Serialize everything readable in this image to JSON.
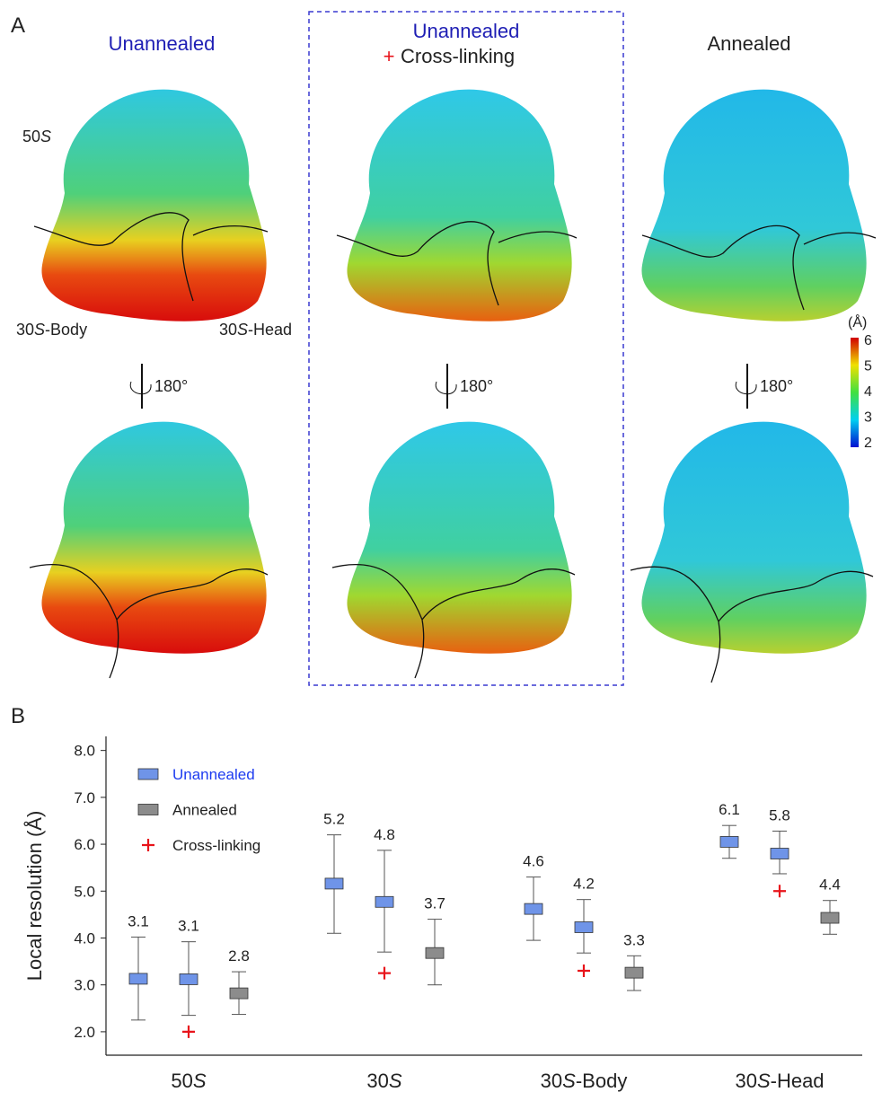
{
  "panel_a": {
    "label": "A",
    "titles": [
      {
        "text": "Unannealed"
      },
      {
        "text": "Unannealed",
        "marker": "+",
        "subtext": "Cross-linking"
      },
      {
        "text": "Annealed"
      }
    ],
    "regions": [
      "50S",
      "30S-Body",
      "30S-Head"
    ],
    "rotation": [
      "180°",
      "180°",
      "180°"
    ],
    "colorbar": {
      "unit": "(Å)",
      "ticks": [
        6,
        5,
        4,
        3,
        2
      ]
    }
  },
  "chart_data": {
    "type": "box",
    "panel_label": "B",
    "ylabel": "Local resolution (Å)",
    "categories": [
      "50S",
      "30S",
      "30S-Body",
      "30S-Head"
    ],
    "ylim": [
      1.5,
      8.3
    ],
    "yticks": [
      {
        "value": 2,
        "label": "2.0"
      },
      {
        "value": 3,
        "label": "3.0"
      },
      {
        "value": 4,
        "label": "4.0"
      },
      {
        "value": 5,
        "label": "5.0"
      },
      {
        "value": 6,
        "label": "6.0"
      },
      {
        "value": 7,
        "label": "7.0"
      },
      {
        "value": 8,
        "label": "8.0"
      }
    ],
    "series": [
      {
        "name": "Unannealed",
        "color": "#6f94e8",
        "values": [
          3.13,
          5.16,
          4.62,
          6.05
        ],
        "value_labels": [
          "3.1",
          "5.2",
          "4.6",
          "6.1"
        ],
        "low": [
          2.25,
          4.1,
          3.95,
          5.7
        ],
        "high": [
          4.02,
          6.2,
          5.3,
          6.4
        ]
      },
      {
        "name": "Annealed",
        "color": "#8c8c8c",
        "values": [
          2.82,
          3.68,
          3.26,
          4.43
        ],
        "value_labels": [
          "2.8",
          "3.7",
          "3.3",
          "4.4"
        ],
        "low": [
          2.37,
          3.0,
          2.88,
          4.08
        ],
        "high": [
          3.28,
          4.4,
          3.62,
          4.8
        ]
      },
      {
        "name": "Cross-linking",
        "color": "#6f94e8",
        "marker_color": "#e8141b",
        "values": [
          3.12,
          4.77,
          4.23,
          5.8
        ],
        "value_labels": [
          "3.1",
          "4.8",
          "4.2",
          "5.8"
        ],
        "low": [
          2.35,
          3.7,
          3.68,
          5.37
        ],
        "high": [
          3.92,
          5.87,
          4.82,
          6.28
        ],
        "marker_values": [
          2.0,
          3.25,
          3.3,
          5.0
        ]
      }
    ]
  }
}
